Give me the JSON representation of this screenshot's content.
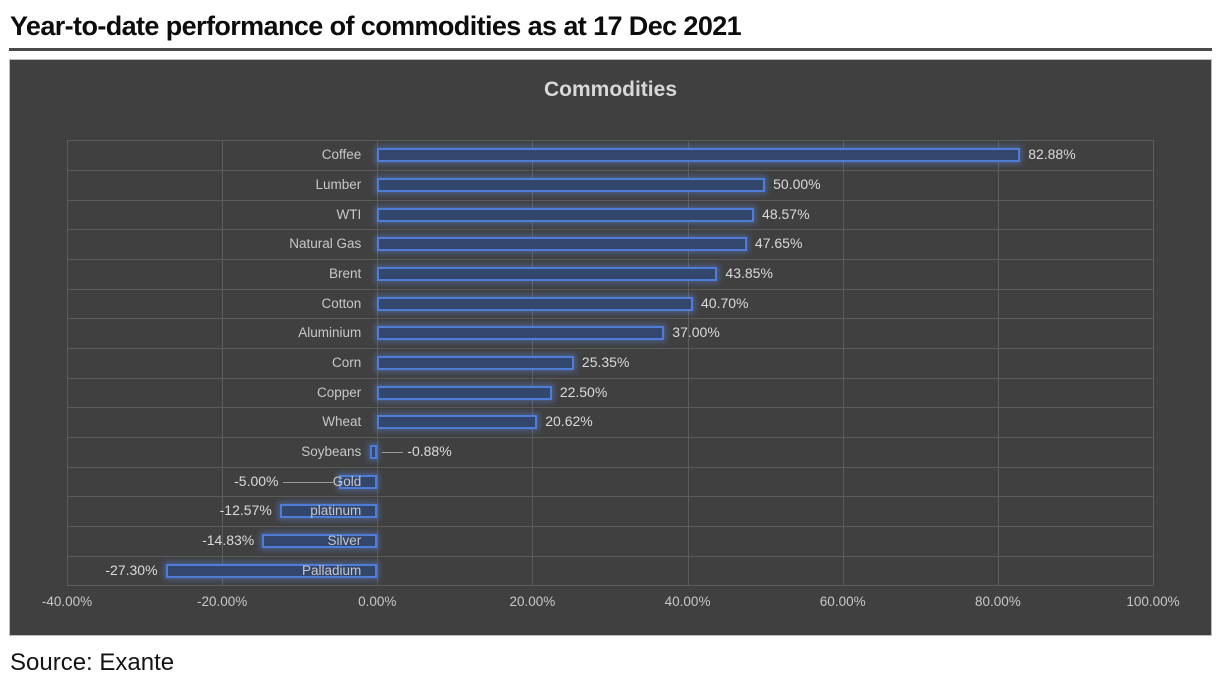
{
  "page": {
    "title": "Year-to-date performance of commodities as at 17 Dec 2021",
    "source": "Source: Exante"
  },
  "chart_data": {
    "type": "bar",
    "orientation": "horizontal",
    "title": "Commodities",
    "categories": [
      "Coffee",
      "Lumber",
      "WTI",
      "Natural Gas",
      "Brent",
      "Cotton",
      "Aluminium",
      "Corn",
      "Copper",
      "Wheat",
      "Soybeans",
      "Gold",
      "platinum",
      "Silver",
      "Palladium"
    ],
    "values": [
      82.88,
      50.0,
      48.57,
      47.65,
      43.85,
      40.7,
      37.0,
      25.35,
      22.5,
      20.62,
      -0.88,
      -5.0,
      -12.57,
      -14.83,
      -27.3
    ],
    "value_labels": [
      "82.88%",
      "50.00%",
      "48.57%",
      "47.65%",
      "43.85%",
      "40.70%",
      "37.00%",
      "25.35%",
      "22.50%",
      "20.62%",
      "-0.88%",
      "-5.00%",
      "-12.57%",
      "-14.83%",
      "-27.30%"
    ],
    "label_placements": [
      "auto",
      "auto",
      "auto",
      "auto",
      "auto",
      "auto",
      "auto",
      "auto",
      "auto",
      "auto",
      "right-leader",
      "left-leader",
      "auto",
      "auto",
      "auto"
    ],
    "xlabel": "",
    "ylabel": "",
    "xlim": [
      -40,
      100
    ],
    "x_ticks": [
      -40,
      -20,
      0,
      20,
      40,
      60,
      80,
      100
    ],
    "x_tick_labels": [
      "-40.00%",
      "-20.00%",
      "0.00%",
      "20.00%",
      "40.00%",
      "60.00%",
      "80.00%",
      "100.00%"
    ],
    "grid": true,
    "legend": "none",
    "colors": {
      "chart_background": "#404040",
      "bar_fill": "#33466b",
      "bar_border": "#4e7cd6",
      "gridline": "#5c5c5c",
      "axis_text": "#c7c7c7",
      "data_label_text": "#dadada",
      "title_text": "#d8d8d8",
      "leader_line": "#9a9a9a"
    }
  }
}
